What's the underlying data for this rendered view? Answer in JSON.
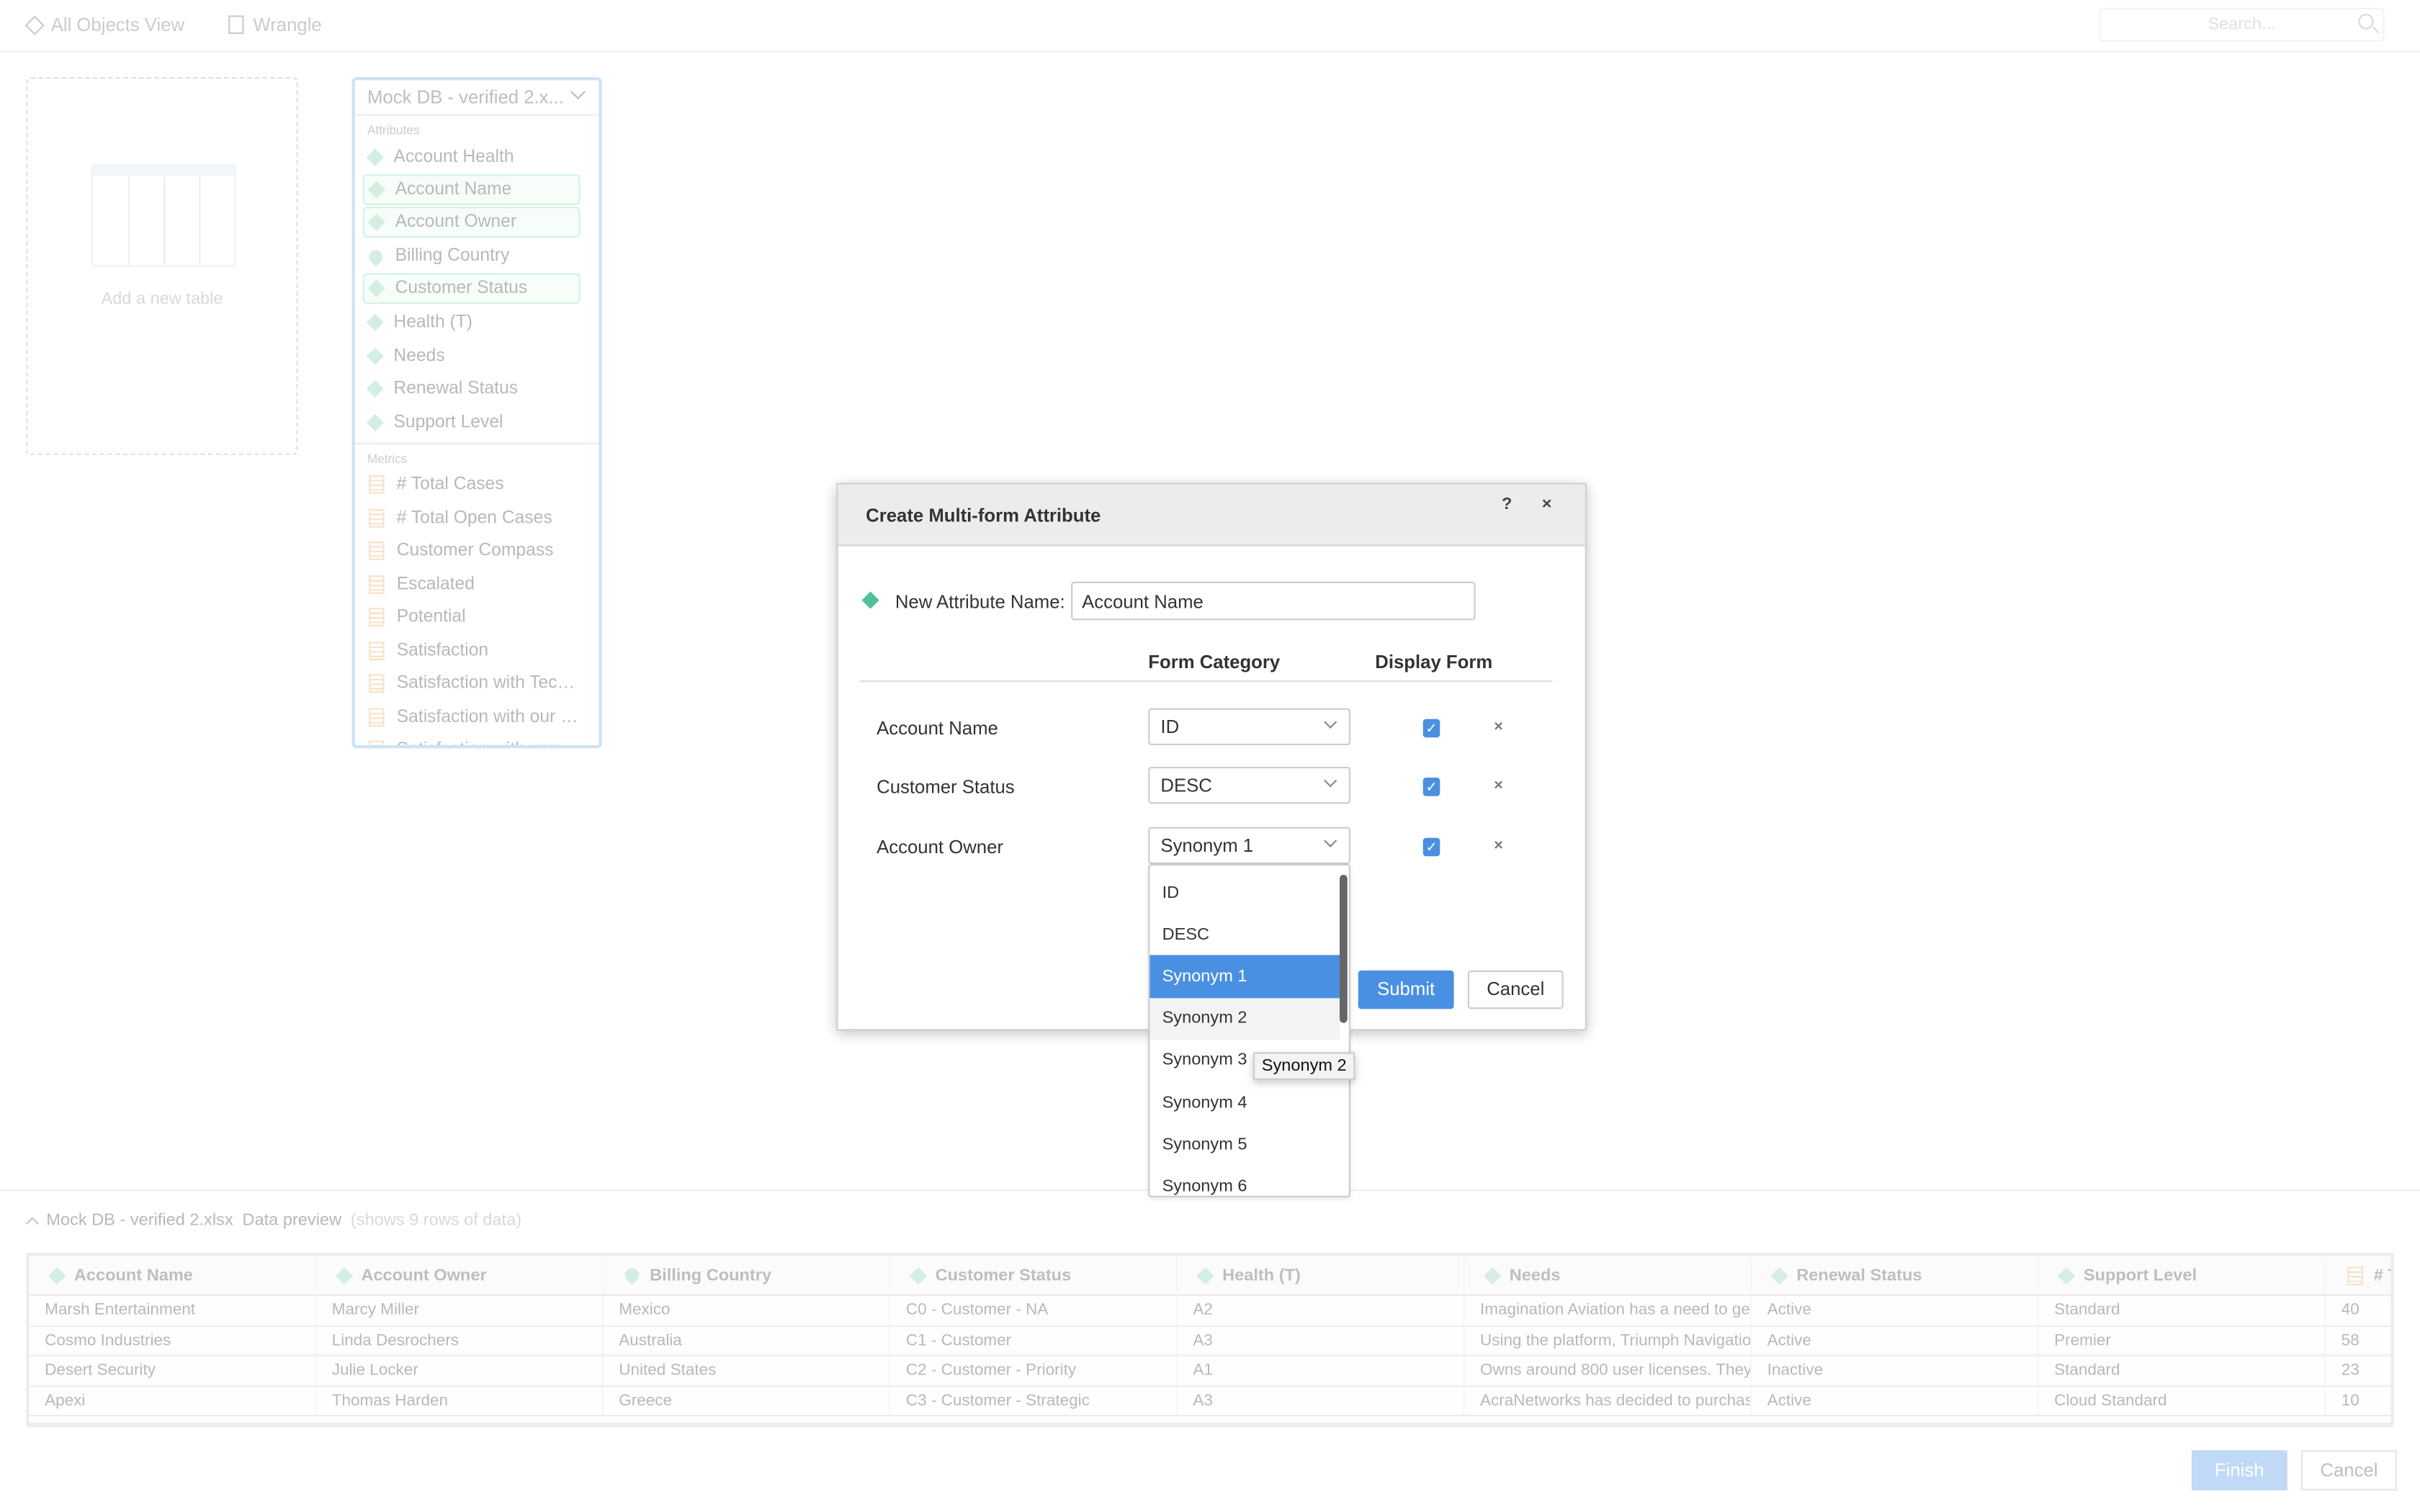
{
  "topbar": {
    "nav": [
      {
        "label": "All Objects View",
        "icon": "diamond-outline-icon"
      },
      {
        "label": "Wrangle",
        "icon": "wrangle-icon"
      }
    ],
    "search_placeholder": "Search..."
  },
  "canvas": {
    "add_table_label": "Add a new table"
  },
  "source_panel": {
    "title": "Mock DB - verified 2.x...",
    "attributes_label": "Attributes",
    "attributes": [
      {
        "label": "Account Health",
        "icon": "attribute-icon",
        "selected": false
      },
      {
        "label": "Account Name",
        "icon": "attribute-icon",
        "selected": true
      },
      {
        "label": "Account Owner",
        "icon": "attribute-icon",
        "selected": true
      },
      {
        "label": "Billing Country",
        "icon": "geo-pin-icon",
        "selected": false
      },
      {
        "label": "Customer Status",
        "icon": "attribute-icon",
        "selected": true
      },
      {
        "label": "Health (T)",
        "icon": "attribute-icon",
        "selected": false
      },
      {
        "label": "Needs",
        "icon": "attribute-icon",
        "selected": false
      },
      {
        "label": "Renewal Status",
        "icon": "attribute-icon",
        "selected": false
      },
      {
        "label": "Support Level",
        "icon": "attribute-icon",
        "selected": false
      }
    ],
    "metrics_label": "Metrics",
    "metrics": [
      "# Total Cases",
      "# Total Open Cases",
      "Customer Compass",
      "Escalated",
      "Potential",
      "Satisfaction",
      "Satisfaction with Tec…",
      "Satisfaction with our …",
      "Satisfaction with ven…"
    ]
  },
  "dialog": {
    "title": "Create Multi-form Attribute",
    "help": "?",
    "close": "×",
    "name_label": "New Attribute Name:",
    "name_value": "Account Name",
    "col_form_category": "Form Category",
    "col_display_form": "Display Form",
    "rows": [
      {
        "label": "Account Name",
        "category": "ID",
        "display": true,
        "remove": "×"
      },
      {
        "label": "Customer Status",
        "category": "DESC",
        "display": true,
        "remove": "×"
      },
      {
        "label": "Account Owner",
        "category": "Synonym 1",
        "display": true,
        "remove": "×"
      }
    ],
    "dropdown_options": [
      "ID",
      "DESC",
      "Synonym 1",
      "Synonym 2",
      "Synonym 3",
      "Synonym 4",
      "Synonym 5",
      "Synonym 6"
    ],
    "dropdown_selected": "Synonym 1",
    "dropdown_hovered": "Synonym 2",
    "tooltip": "Synonym 2",
    "submit": "Submit",
    "cancel": "Cancel",
    "checkmark": "✓"
  },
  "preview": {
    "file": "Mock DB - verified 2.xlsx",
    "label": "Data preview",
    "note": "(shows 9 rows of data)",
    "columns": [
      {
        "label": "Account Name",
        "icon": "attribute-icon"
      },
      {
        "label": "Account Owner",
        "icon": "attribute-icon"
      },
      {
        "label": "Billing Country",
        "icon": "geo-pin-icon"
      },
      {
        "label": "Customer Status",
        "icon": "attribute-icon"
      },
      {
        "label": "Health (T)",
        "icon": "attribute-icon"
      },
      {
        "label": "Needs",
        "icon": "attribute-icon"
      },
      {
        "label": "Renewal Status",
        "icon": "attribute-icon"
      },
      {
        "label": "Support Level",
        "icon": "attribute-icon"
      },
      {
        "label": "# T",
        "icon": "metric-icon"
      }
    ],
    "rows": [
      [
        "Marsh Entertainment",
        "Marcy Miller",
        "Mexico",
        "C0 - Customer - NA",
        "A2",
        "Imagination Aviation has a need to ge.",
        "Active",
        "Standard",
        "40"
      ],
      [
        "Cosmo Industries",
        "Linda Desrochers",
        "Australia",
        "C1 - Customer",
        "A3",
        "Using the platform, Triumph Navigatio.",
        "Active",
        "Premier",
        "58"
      ],
      [
        "Desert Security",
        "Julie Locker",
        "United States",
        "C2 - Customer - Priority",
        "A1",
        "Owns around 800 user licenses. They.",
        "Inactive",
        "Standard",
        "23"
      ],
      [
        "Apexi",
        "Thomas Harden",
        "Greece",
        "C3 - Customer - Strategic",
        "A3",
        "AcraNetworks has decided to purchas.",
        "Active",
        "Cloud Standard",
        "10"
      ]
    ]
  },
  "footer": {
    "finish": "Finish",
    "cancel": "Cancel"
  },
  "colors": {
    "accent": "#4a90e2",
    "attribute": "#4fc29a",
    "metric": "#f0b070"
  }
}
